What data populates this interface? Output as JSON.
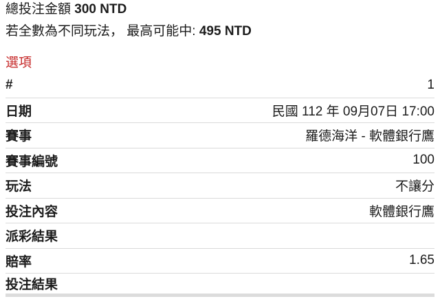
{
  "summary": {
    "total_label": "總投注金額 ",
    "total_value": "300 NTD",
    "max_win_label": "若全數為不同玩法， 最高可能中: ",
    "max_win_value": "495 NTD"
  },
  "section": {
    "title": "選項"
  },
  "table": {
    "rows": [
      {
        "label": "#",
        "value": "1"
      },
      {
        "label": "日期",
        "value": "民國 112 年 09月07日 17:00"
      },
      {
        "label": "賽事",
        "value": "羅德海洋 - 軟體銀行鷹"
      },
      {
        "label": "賽事編號",
        "value": "100"
      },
      {
        "label": "玩法",
        "value": "不讓分"
      },
      {
        "label": "投注內容",
        "value": "軟體銀行鷹"
      },
      {
        "label": "派彩結果",
        "value": ""
      },
      {
        "label": "賠率",
        "value": "1.65"
      },
      {
        "label": "投注結果",
        "value": ""
      }
    ]
  },
  "colors": {
    "section_title": "#c62828",
    "text": "#1b1b1b",
    "divider": "#dadada",
    "bottom_bar": "#dcdcdc"
  }
}
